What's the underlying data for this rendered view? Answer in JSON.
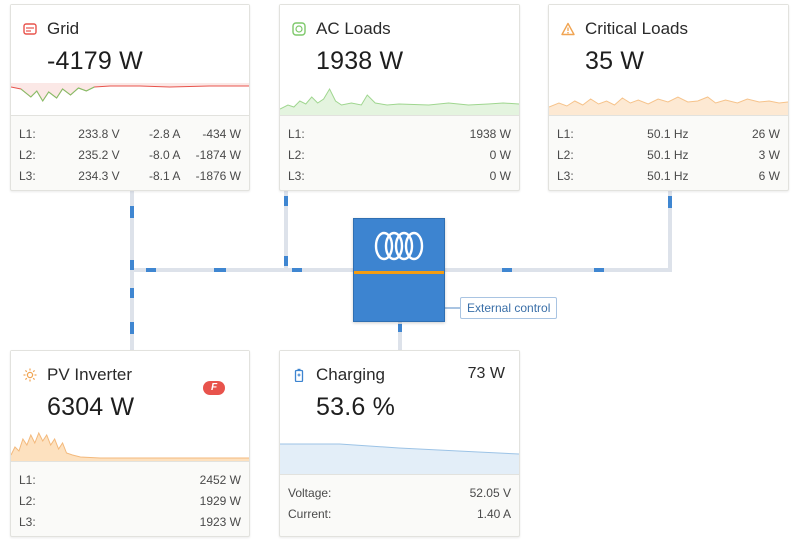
{
  "grid": {
    "title": "Grid",
    "power": "-4179 W",
    "rows": [
      {
        "label": "L1:",
        "voltage": "233.8 V",
        "current": "-2.8 A",
        "power": "-434 W"
      },
      {
        "label": "L2:",
        "voltage": "235.2 V",
        "current": "-8.0 A",
        "power": "-1874 W"
      },
      {
        "label": "L3:",
        "voltage": "234.3 V",
        "current": "-8.1 A",
        "power": "-1876 W"
      }
    ]
  },
  "ac_loads": {
    "title": "AC Loads",
    "power": "1938 W",
    "rows": [
      {
        "label": "L1:",
        "power": "1938 W"
      },
      {
        "label": "L2:",
        "power": "0 W"
      },
      {
        "label": "L3:",
        "power": "0 W"
      }
    ]
  },
  "critical_loads": {
    "title": "Critical Loads",
    "power": "35 W",
    "rows": [
      {
        "label": "L1:",
        "frequency": "50.1 Hz",
        "power": "26 W"
      },
      {
        "label": "L2:",
        "frequency": "50.1 Hz",
        "power": "3 W"
      },
      {
        "label": "L3:",
        "frequency": "50.1 Hz",
        "power": "6 W"
      }
    ]
  },
  "pv_inverter": {
    "title": "PV Inverter",
    "power": "6304 W",
    "badge": "F",
    "rows": [
      {
        "label": "L1:",
        "power": "2452 W"
      },
      {
        "label": "L2:",
        "power": "1929 W"
      },
      {
        "label": "L3:",
        "power": "1923 W"
      }
    ]
  },
  "battery": {
    "title": "Charging",
    "soc": "53.6 %",
    "power": "73 W",
    "voltage_label": "Voltage:",
    "voltage": "52.05 V",
    "current_label": "Current:",
    "current": "1.40 A"
  },
  "inverter": {
    "external_control_label": "External control"
  },
  "colors": {
    "grid_accent": "#e8534c",
    "ac_accent": "#7dc86a",
    "critical_accent": "#f0a452",
    "pv_accent": "#f0a452",
    "battery_accent": "#7fb3e0",
    "inverter_blue": "#3d84d0",
    "inverter_stripe": "#f39c12"
  },
  "icons": {
    "grid": "grid-meter-icon",
    "ac_loads": "ac-loads-icon",
    "critical_loads": "warning-triangle-icon",
    "pv_inverter": "sun-icon",
    "battery": "battery-icon",
    "inverter": "victron-logo-icon"
  }
}
